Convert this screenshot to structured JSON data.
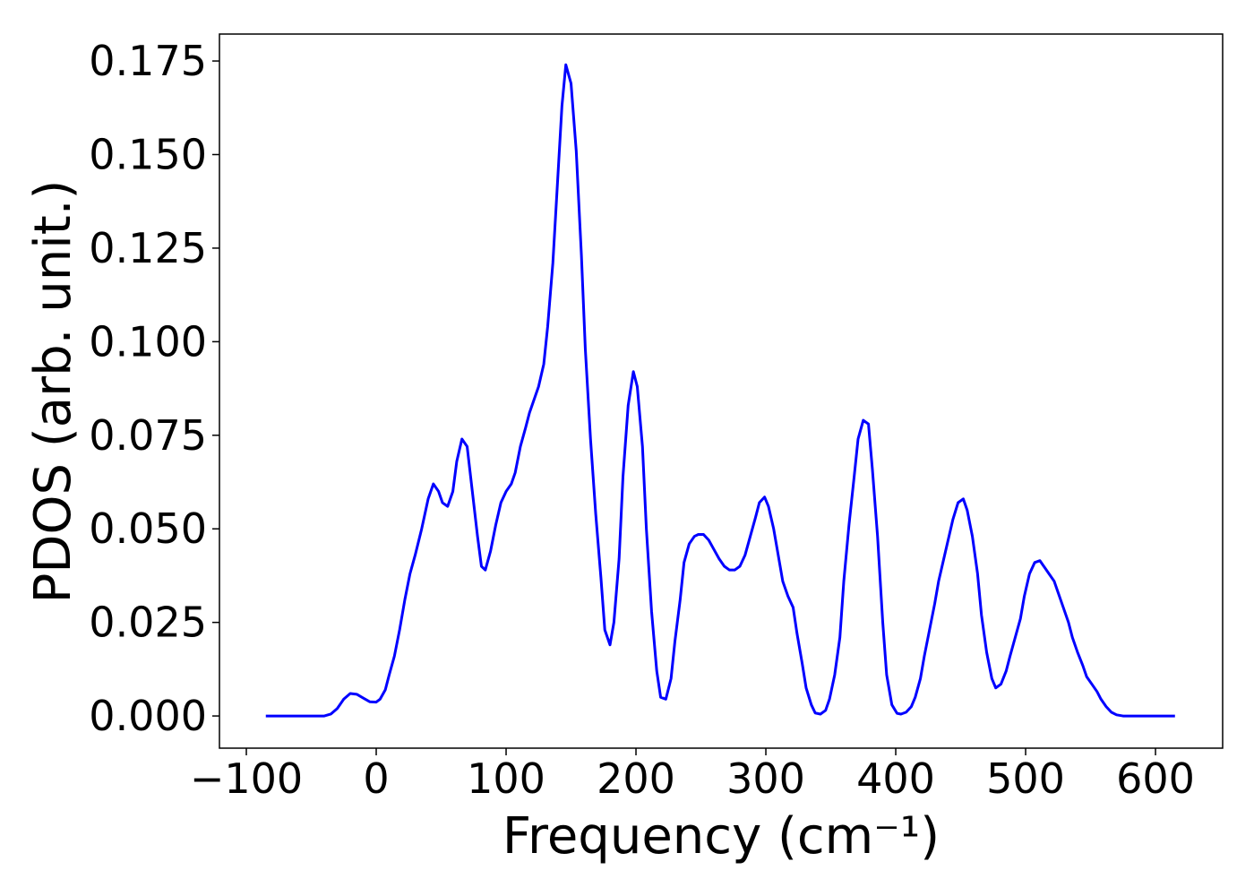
{
  "chart_data": {
    "type": "line",
    "xlabel": "Frequency (cm⁻¹)",
    "ylabel": "PDOS (arb. unit.)",
    "x": [
      -85,
      -40,
      -35,
      -30,
      -25,
      -20,
      -15,
      -10,
      -5,
      0,
      3,
      7,
      10,
      14,
      18,
      22,
      26,
      30,
      35,
      40,
      44,
      48,
      51,
      55,
      59,
      62,
      66,
      70,
      74,
      78,
      81,
      84,
      88,
      92,
      96,
      100,
      104,
      107,
      111,
      115,
      118,
      122,
      125,
      129,
      132,
      136,
      140,
      143,
      146,
      150,
      154,
      158,
      161,
      165,
      169,
      173,
      176,
      180,
      183,
      187,
      190,
      194,
      198,
      201,
      205,
      208,
      212,
      216,
      219,
      223,
      227,
      230,
      234,
      237,
      241,
      245,
      248,
      252,
      256,
      260,
      264,
      268,
      272,
      276,
      280,
      284,
      288,
      292,
      295,
      299,
      302,
      306,
      310,
      313,
      317,
      321,
      324,
      328,
      331,
      335,
      338,
      342,
      346,
      349,
      353,
      357,
      360,
      364,
      368,
      371,
      375,
      379,
      382,
      386,
      390,
      393,
      397,
      401,
      404,
      408,
      412,
      415,
      419,
      422,
      426,
      430,
      433,
      437,
      441,
      444,
      448,
      452,
      455,
      459,
      463,
      466,
      470,
      474,
      477,
      481,
      485,
      488,
      492,
      496,
      499,
      503,
      507,
      511,
      514,
      518,
      522,
      525,
      529,
      533,
      536,
      540,
      544,
      547,
      551,
      555,
      558,
      562,
      566,
      570,
      575,
      615
    ],
    "series": [
      {
        "name": "PDOS",
        "color": "#0000ff",
        "values": [
          0,
          0,
          0.0005,
          0.002,
          0.0045,
          0.006,
          0.0058,
          0.0048,
          0.0038,
          0.0037,
          0.0045,
          0.007,
          0.011,
          0.016,
          0.023,
          0.031,
          0.038,
          0.043,
          0.05,
          0.058,
          0.062,
          0.06,
          0.057,
          0.056,
          0.06,
          0.068,
          0.074,
          0.072,
          0.06,
          0.048,
          0.04,
          0.039,
          0.044,
          0.051,
          0.057,
          0.06,
          0.062,
          0.065,
          0.072,
          0.077,
          0.081,
          0.085,
          0.088,
          0.094,
          0.104,
          0.121,
          0.145,
          0.163,
          0.174,
          0.169,
          0.151,
          0.123,
          0.098,
          0.074,
          0.054,
          0.037,
          0.023,
          0.019,
          0.025,
          0.042,
          0.064,
          0.083,
          0.092,
          0.088,
          0.072,
          0.05,
          0.028,
          0.012,
          0.005,
          0.0045,
          0.01,
          0.02,
          0.031,
          0.041,
          0.046,
          0.048,
          0.0485,
          0.0485,
          0.047,
          0.0445,
          0.042,
          0.04,
          0.039,
          0.039,
          0.04,
          0.043,
          0.048,
          0.053,
          0.057,
          0.0585,
          0.056,
          0.05,
          0.042,
          0.036,
          0.032,
          0.029,
          0.022,
          0.014,
          0.0075,
          0.003,
          0.0008,
          0.0005,
          0.0015,
          0.0045,
          0.011,
          0.021,
          0.036,
          0.051,
          0.064,
          0.074,
          0.079,
          0.078,
          0.066,
          0.048,
          0.025,
          0.011,
          0.003,
          0.0007,
          0.0005,
          0.001,
          0.0025,
          0.005,
          0.01,
          0.016,
          0.023,
          0.03,
          0.036,
          0.042,
          0.048,
          0.0525,
          0.057,
          0.058,
          0.055,
          0.048,
          0.038,
          0.027,
          0.017,
          0.01,
          0.0075,
          0.0085,
          0.012,
          0.016,
          0.021,
          0.026,
          0.032,
          0.038,
          0.041,
          0.0415,
          0.04,
          0.038,
          0.036,
          0.033,
          0.029,
          0.025,
          0.021,
          0.017,
          0.0135,
          0.0105,
          0.0085,
          0.0065,
          0.0045,
          0.0025,
          0.001,
          0.0003,
          0,
          0
        ]
      }
    ],
    "xlim": [
      -120.7,
      651.7
    ],
    "ylim": [
      -0.0086,
      0.1822
    ],
    "xticks": [
      {
        "value": -100,
        "label": "−100"
      },
      0,
      100,
      200,
      300,
      400,
      500,
      600
    ],
    "yticks": [
      {
        "value": 0,
        "label": "0.000"
      },
      {
        "value": 0.025,
        "label": "0.025"
      },
      {
        "value": 0.05,
        "label": "0.050"
      },
      {
        "value": 0.075,
        "label": "0.075"
      },
      {
        "value": 0.1,
        "label": "0.100"
      },
      {
        "value": 0.125,
        "label": "0.125"
      },
      {
        "value": 0.15,
        "label": "0.150"
      },
      {
        "value": 0.175,
        "label": "0.175"
      }
    ],
    "grid": false
  }
}
